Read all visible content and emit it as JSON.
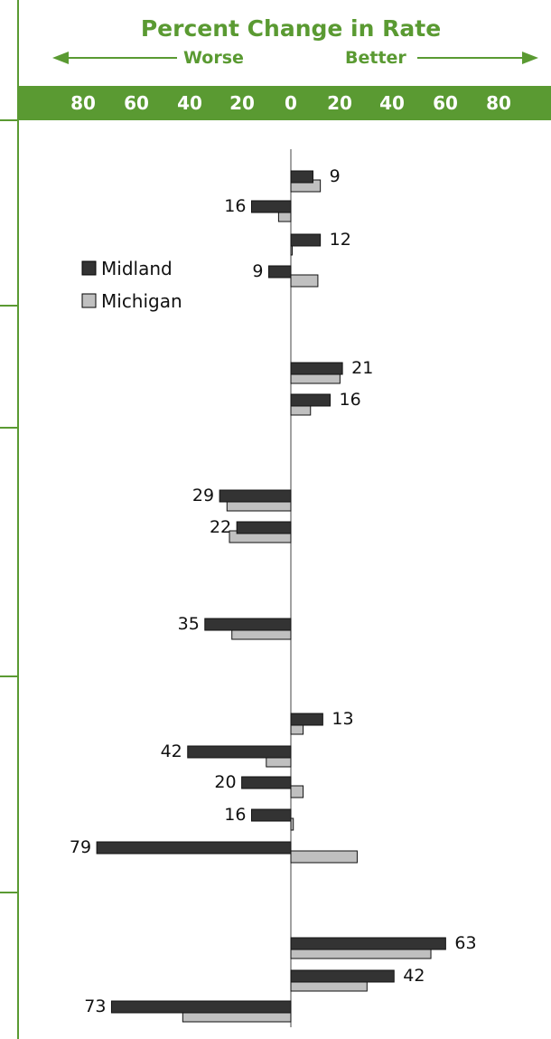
{
  "chart_data": {
    "type": "bar",
    "title": "Percent Change in Rate",
    "direction_left": "Worse",
    "direction_right": "Better",
    "x_tick_labels": [
      "80",
      "60",
      "40",
      "20",
      "0",
      "20",
      "40",
      "60",
      "80"
    ],
    "xlim": [
      -80,
      80
    ],
    "series": [
      {
        "name": "Midland",
        "color": "#333333",
        "values": [
          9,
          -16,
          12,
          -9,
          21,
          16,
          -29,
          -22,
          -35,
          13,
          -42,
          -20,
          -16,
          -79,
          63,
          42,
          -73
        ]
      },
      {
        "name": "Michigan",
        "color": "#c0c0c0",
        "values": [
          12,
          -5,
          0.5,
          11,
          20,
          8,
          -26,
          -25,
          -24,
          5,
          -10,
          5,
          1,
          27,
          57,
          31,
          -44
        ]
      }
    ],
    "data_labels": [
      "9",
      "16",
      "12",
      "9",
      "21",
      "16",
      "29",
      "22",
      "35",
      "13",
      "42",
      "20",
      "16",
      "79",
      "63",
      "42",
      "73"
    ],
    "legend_position": "upper-left",
    "colors": {
      "accent": "#5a9a32",
      "band": "#5a9a32",
      "midland": "#333333",
      "michigan": "#c0c0c0"
    }
  }
}
